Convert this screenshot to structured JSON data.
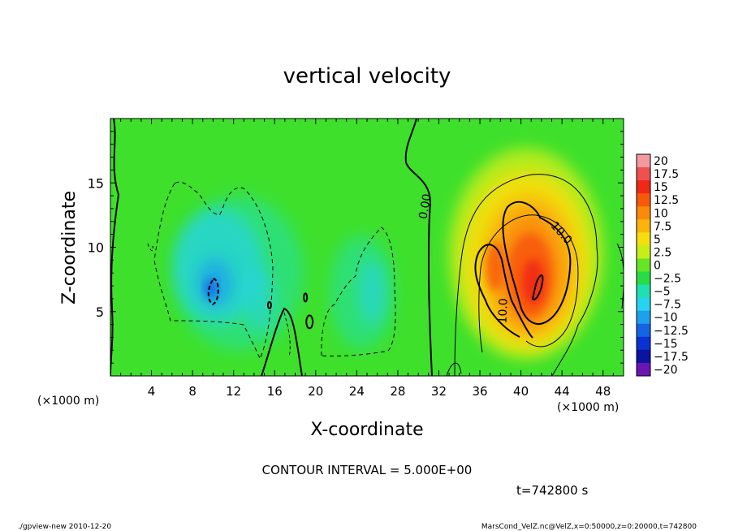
{
  "chart_data": {
    "type": "heatmap",
    "title": "vertical velocity",
    "xlabel": "X-coordinate",
    "ylabel": "Z-coordinate",
    "x_unit": "(×1000 m)",
    "y_unit": "(×1000 m)",
    "xlim": [
      0,
      50
    ],
    "ylim": [
      0,
      20
    ],
    "x_ticks": [
      "4",
      "8",
      "12",
      "16",
      "20",
      "24",
      "28",
      "32",
      "36",
      "40",
      "44",
      "48"
    ],
    "x_tick_values": [
      4,
      8,
      12,
      16,
      20,
      24,
      28,
      32,
      36,
      40,
      44,
      48
    ],
    "y_ticks": [
      "5",
      "10",
      "15"
    ],
    "y_tick_values": [
      5,
      10,
      15
    ],
    "colorbar_labels": [
      "20",
      "17.5",
      "15",
      "12.5",
      "10",
      "7.5",
      "5",
      "2.5",
      "0",
      "−2.5",
      "−5",
      "−7.5",
      "−10",
      "−12.5",
      "−15",
      "−17.5",
      "−20"
    ],
    "colorbar_colors": [
      "#f39aa0",
      "#f05050",
      "#f02818",
      "#f85a0a",
      "#fa8a0a",
      "#fbb40c",
      "#f5de10",
      "#c8ee1a",
      "#64e626",
      "#28dc46",
      "#20e0b0",
      "#28d2f0",
      "#1ea0ec",
      "#1464e6",
      "#0a32d2",
      "#0a14a0",
      "#6a14b4"
    ],
    "contour_labels": [
      "0.00",
      "10.0",
      "10.0"
    ],
    "contour_interval_text": "CONTOUR INTERVAL = 5.000E+00",
    "time_text": "t=742800 s"
  },
  "footer": {
    "left": "./gpview-new  2010-12-20",
    "right": "MarsCond_VelZ.nc@VelZ,x=0:50000,z=0:20000,t=742800"
  }
}
